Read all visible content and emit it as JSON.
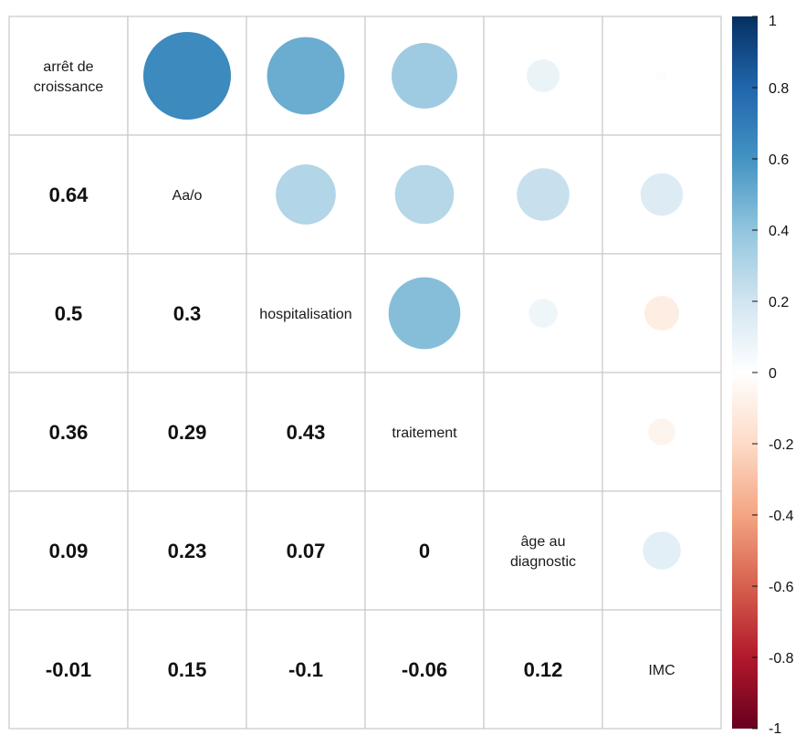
{
  "chart_data": {
    "type": "heatmap",
    "style": "correlation-matrix",
    "upper_triangle": "circles",
    "lower_triangle": "numbers",
    "diagonal": "variable names",
    "variables": [
      "arrêt de croissance",
      "Aa/o",
      "hospitalisation",
      "traitement",
      "âge au diagnostic",
      "IMC"
    ],
    "matrix": [
      [
        1,
        0.64,
        0.5,
        0.36,
        0.09,
        -0.01
      ],
      [
        0.64,
        1,
        0.3,
        0.29,
        0.23,
        0.15
      ],
      [
        0.5,
        0.3,
        1,
        0.43,
        0.07,
        -0.1
      ],
      [
        0.36,
        0.29,
        0.43,
        1,
        0,
        -0.06
      ],
      [
        0.09,
        0.23,
        0.07,
        0,
        1,
        0.12
      ],
      [
        -0.01,
        0.15,
        -0.1,
        -0.06,
        0.12,
        1
      ]
    ],
    "lower_labels": [
      [
        "0.64"
      ],
      [
        "0.5",
        "0.3"
      ],
      [
        "0.36",
        "0.29",
        "0.43"
      ],
      [
        "0.09",
        "0.23",
        "0.07",
        "0"
      ],
      [
        "-0.01",
        "0.15",
        "-0.1",
        "-0.06",
        "0.12"
      ]
    ],
    "colorbar": {
      "range": [
        -1,
        1
      ],
      "ticks": [
        "1",
        "0.8",
        "0.6",
        "0.4",
        "0.2",
        "0",
        "-0.2",
        "-0.4",
        "-0.6",
        "-0.8",
        "-1"
      ],
      "tick_values": [
        1,
        0.8,
        0.6,
        0.4,
        0.2,
        0,
        -0.2,
        -0.4,
        -0.6,
        -0.8,
        -1
      ],
      "position": "right"
    },
    "colors": {
      "low": "#67001f",
      "mid": "#ffffff",
      "high": "#053061",
      "grid": "#c8c8c8"
    }
  }
}
